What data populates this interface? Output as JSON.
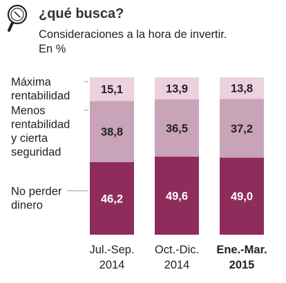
{
  "header": {
    "icon": "magnifier-icon",
    "title": "¿qué busca?",
    "subtitle_lines": [
      "Consideraciones a la hora de invertir.",
      "En %"
    ]
  },
  "chart_data": {
    "type": "bar",
    "stacked": true,
    "title": "¿qué busca?",
    "subtitle": "Consideraciones a la hora de invertir. En %",
    "categories": [
      {
        "lines": [
          "Jul.-Sep.",
          "2014"
        ],
        "bold": false
      },
      {
        "lines": [
          "Oct.-Dic.",
          "2014"
        ],
        "bold": false
      },
      {
        "lines": [
          "Ene.-Mar.",
          "2015"
        ],
        "bold": true
      }
    ],
    "series": [
      {
        "name": "No perder dinero",
        "label_lines": [
          "No perder",
          "dinero"
        ],
        "values": [
          46.2,
          49.6,
          49.0
        ],
        "labels": [
          "46,2",
          "49,6",
          "49,0"
        ],
        "color": "#8e2c5c",
        "text_color": "#ffffff"
      },
      {
        "name": "Menos rentabilidad y cierta seguridad",
        "label_lines": [
          "Menos",
          "rentabilidad",
          "y cierta",
          "seguridad"
        ],
        "values": [
          38.8,
          36.5,
          37.2
        ],
        "labels": [
          "38,8",
          "36,5",
          "37,2"
        ],
        "color": "#c9a3b7",
        "text_color": "#222222"
      },
      {
        "name": "Máxima rentabilidad",
        "label_lines": [
          "Máxima",
          "rentabilidad"
        ],
        "values": [
          15.1,
          13.9,
          13.8
        ],
        "labels": [
          "15,1",
          "13,9",
          "13,8"
        ],
        "color": "#ecd2de",
        "text_color": "#222222"
      }
    ],
    "ylim": [
      0,
      100
    ],
    "grid": false,
    "legend": "left"
  }
}
